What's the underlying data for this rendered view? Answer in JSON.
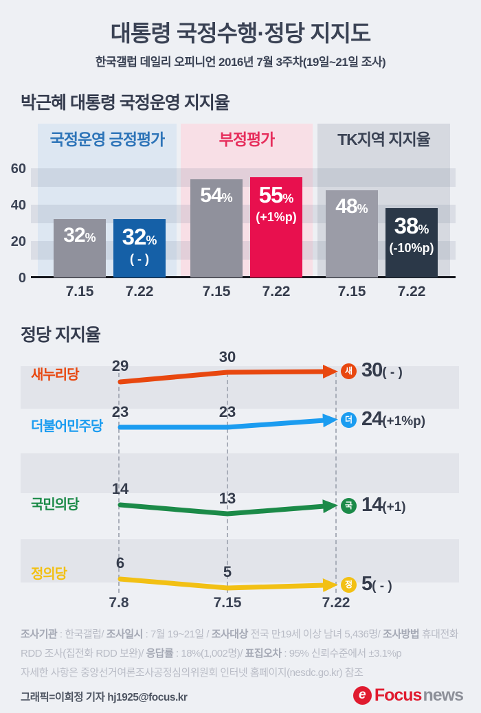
{
  "header": {
    "title": "대통령 국정수행·정당 지지도",
    "subtitle": "한국갤럽 데일리 오피니언 2016년 7월 3주차(19일~21일 조사)"
  },
  "colors": {
    "page_bg": "#eef0f4",
    "dark_text": "#3a4254",
    "gray_bar": "#90919c",
    "positive_blue": "#1560a7",
    "negative_red": "#e8104e",
    "tk_navy": "#2b3848",
    "saenuri_orange": "#e8470f",
    "minjoo_blue": "#1b9cf0",
    "kukmin_green": "#1b8a48",
    "justice_yellow": "#f2c014",
    "logo_red": "#e01b2f"
  },
  "chart_data": [
    {
      "type": "bar",
      "title": "박근혜 대통령 국정운영 지지율",
      "ylabel": "",
      "y_ticks": [
        0,
        20,
        40,
        60
      ],
      "ylim": [
        0,
        62
      ],
      "grid": "striped-bands",
      "groups": [
        {
          "label": "국정운영 긍정평가",
          "label_color": "#2d74b8",
          "panel_bg": "#dde7f2",
          "bars": [
            {
              "period": "7.15",
              "value": 32,
              "unit": "%",
              "change": "",
              "color": "#90919c",
              "emphasis": false
            },
            {
              "period": "7.22",
              "value": 32,
              "unit": "%",
              "change": "( - )",
              "color": "#1560a7",
              "emphasis": true
            }
          ]
        },
        {
          "label": "부정평가",
          "label_color": "#e62e5c",
          "panel_bg": "#f8dfe6",
          "bars": [
            {
              "period": "7.15",
              "value": 54,
              "unit": "%",
              "change": "",
              "color": "#90919c",
              "emphasis": false
            },
            {
              "period": "7.22",
              "value": 55,
              "unit": "%",
              "change": "(+1%p)",
              "color": "#e8104e",
              "emphasis": true
            }
          ]
        },
        {
          "label": "TK지역 지지율",
          "label_color": "#3a4254",
          "panel_bg": "#d6d9e0",
          "bars": [
            {
              "period": "7.15",
              "value": 48,
              "unit": "%",
              "change": "",
              "color": "#9b9ca7",
              "emphasis": false
            },
            {
              "period": "7.22",
              "value": 38,
              "unit": "%",
              "change": "(-10%p)",
              "color": "#2b3848",
              "emphasis": true
            }
          ]
        }
      ]
    },
    {
      "type": "line",
      "title": "정당 지지율",
      "x": [
        "7.8",
        "7.15",
        "7.22"
      ],
      "series": [
        {
          "name": "새누리당",
          "color": "#e8470f",
          "badge": "새",
          "values": [
            29,
            30,
            30
          ],
          "end_value": "30",
          "end_change": "( - )"
        },
        {
          "name": "더불어민주당",
          "color": "#1b9cf0",
          "badge": "더",
          "values": [
            23,
            23,
            24
          ],
          "end_value": "24",
          "end_change": "(+1%p)"
        },
        {
          "name": "국민의당",
          "color": "#1b8a48",
          "badge": "국",
          "values": [
            14,
            13,
            14
          ],
          "end_value": "14",
          "end_change": "(+1)"
        },
        {
          "name": "정의당",
          "color": "#f2c014",
          "badge": "정",
          "values": [
            6,
            5,
            5
          ],
          "end_value": "5",
          "end_change": "( - )"
        }
      ]
    }
  ],
  "footer": {
    "lines": [
      [
        {
          "t": "조사기관",
          "b": true
        },
        {
          "t": " : 한국갤럽/ ",
          "b": false
        },
        {
          "t": "조사일시",
          "b": true
        },
        {
          "t": " : 7월 19~21일 / ",
          "b": false
        },
        {
          "t": "조사대상",
          "b": true
        },
        {
          "t": " 전국 만19세 이상 남녀 5,436명/ ",
          "b": false
        },
        {
          "t": "조사방법",
          "b": true
        },
        {
          "t": " 휴대전화",
          "b": false
        }
      ],
      [
        {
          "t": "RDD 조사(집전화 RDD 보완)/ ",
          "b": false
        },
        {
          "t": "응답률",
          "b": true
        },
        {
          "t": " : 18%(1,002명)/ ",
          "b": false
        },
        {
          "t": "표집오차",
          "b": true
        },
        {
          "t": " : 95% 신뢰수준에서 ±3.1%p",
          "b": false
        }
      ],
      [
        {
          "t": "자세한 사항은 중앙선거여론조사공정심의위원회 인터넷 홈페이지(nesdc.go.kr) 참조",
          "b": false
        }
      ]
    ],
    "credit": "그래픽=이희정 기자 hj1925@focus.kr"
  },
  "logo": {
    "icon": "e",
    "text_primary": "Focus",
    "text_secondary": "news"
  }
}
